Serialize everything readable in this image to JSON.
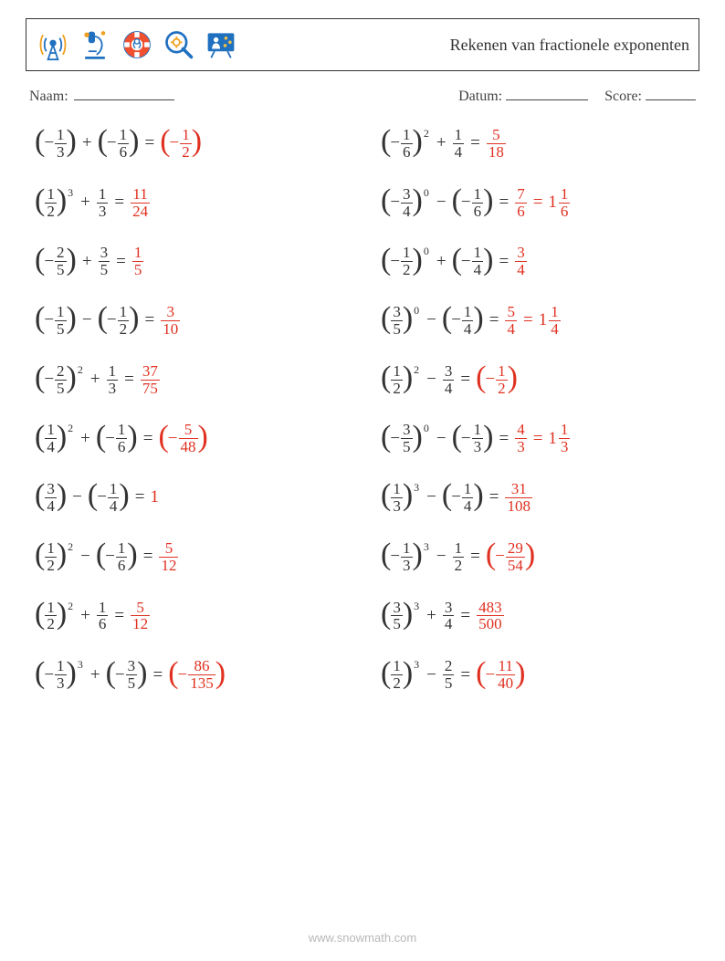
{
  "title": "Rekenen van fractionele exponenten",
  "labels": {
    "name": "Naam:",
    "date": "Datum:",
    "score": "Score:"
  },
  "footer": "www.snowmath.com",
  "answer_color": "#e03020",
  "icons": [
    "antenna",
    "microscope",
    "lifebuoy",
    "magnifier",
    "board"
  ],
  "leftColumn": [
    {
      "a": {
        "neg": true,
        "num": "1",
        "den": "3"
      },
      "op": "+",
      "b": {
        "neg": true,
        "num": "1",
        "den": "6"
      },
      "answers": [
        {
          "neg": true,
          "num": "1",
          "den": "2",
          "paren": true
        }
      ]
    },
    {
      "a": {
        "neg": false,
        "num": "1",
        "den": "2",
        "exp": "3"
      },
      "op": "+",
      "b": {
        "neg": false,
        "num": "1",
        "den": "3",
        "bare": true
      },
      "answers": [
        {
          "num": "11",
          "den": "24"
        }
      ]
    },
    {
      "a": {
        "neg": true,
        "num": "2",
        "den": "5"
      },
      "op": "+",
      "b": {
        "neg": false,
        "num": "3",
        "den": "5",
        "bare": true
      },
      "answers": [
        {
          "num": "1",
          "den": "5"
        }
      ]
    },
    {
      "a": {
        "neg": true,
        "num": "1",
        "den": "5"
      },
      "op": "−",
      "b": {
        "neg": true,
        "num": "1",
        "den": "2"
      },
      "answers": [
        {
          "num": "3",
          "den": "10"
        }
      ]
    },
    {
      "a": {
        "neg": true,
        "num": "2",
        "den": "5",
        "exp": "2"
      },
      "op": "+",
      "b": {
        "neg": false,
        "num": "1",
        "den": "3",
        "bare": true
      },
      "answers": [
        {
          "num": "37",
          "den": "75"
        }
      ]
    },
    {
      "a": {
        "neg": false,
        "num": "1",
        "den": "4",
        "exp": "2"
      },
      "op": "+",
      "b": {
        "neg": true,
        "num": "1",
        "den": "6"
      },
      "answers": [
        {
          "neg": true,
          "num": "5",
          "den": "48",
          "paren": true
        }
      ]
    },
    {
      "a": {
        "neg": false,
        "num": "3",
        "den": "4"
      },
      "op": "−",
      "b": {
        "neg": true,
        "num": "1",
        "den": "4"
      },
      "answers": [
        {
          "int": "1"
        }
      ]
    },
    {
      "a": {
        "neg": false,
        "num": "1",
        "den": "2",
        "exp": "2"
      },
      "op": "−",
      "b": {
        "neg": true,
        "num": "1",
        "den": "6"
      },
      "answers": [
        {
          "num": "5",
          "den": "12"
        }
      ]
    },
    {
      "a": {
        "neg": false,
        "num": "1",
        "den": "2",
        "exp": "2"
      },
      "op": "+",
      "b": {
        "neg": false,
        "num": "1",
        "den": "6",
        "bare": true
      },
      "answers": [
        {
          "num": "5",
          "den": "12"
        }
      ]
    },
    {
      "a": {
        "neg": true,
        "num": "1",
        "den": "3",
        "exp": "3"
      },
      "op": "+",
      "b": {
        "neg": true,
        "num": "3",
        "den": "5"
      },
      "answers": [
        {
          "neg": true,
          "num": "86",
          "den": "135",
          "paren": true
        }
      ]
    }
  ],
  "rightColumn": [
    {
      "a": {
        "neg": true,
        "num": "1",
        "den": "6",
        "exp": "2"
      },
      "op": "+",
      "b": {
        "neg": false,
        "num": "1",
        "den": "4",
        "bare": true
      },
      "answers": [
        {
          "num": "5",
          "den": "18"
        }
      ]
    },
    {
      "a": {
        "neg": true,
        "num": "3",
        "den": "4",
        "exp": "0"
      },
      "op": "−",
      "b": {
        "neg": true,
        "num": "1",
        "den": "6"
      },
      "answers": [
        {
          "num": "7",
          "den": "6"
        },
        {
          "whole": "1",
          "num": "1",
          "den": "6"
        }
      ]
    },
    {
      "a": {
        "neg": true,
        "num": "1",
        "den": "2",
        "exp": "0"
      },
      "op": "+",
      "b": {
        "neg": true,
        "num": "1",
        "den": "4"
      },
      "answers": [
        {
          "num": "3",
          "den": "4"
        }
      ]
    },
    {
      "a": {
        "neg": false,
        "num": "3",
        "den": "5",
        "exp": "0"
      },
      "op": "−",
      "b": {
        "neg": true,
        "num": "1",
        "den": "4"
      },
      "answers": [
        {
          "num": "5",
          "den": "4"
        },
        {
          "whole": "1",
          "num": "1",
          "den": "4"
        }
      ]
    },
    {
      "a": {
        "neg": false,
        "num": "1",
        "den": "2",
        "exp": "2"
      },
      "op": "−",
      "b": {
        "neg": false,
        "num": "3",
        "den": "4",
        "bare": true
      },
      "answers": [
        {
          "neg": true,
          "num": "1",
          "den": "2",
          "paren": true
        }
      ]
    },
    {
      "a": {
        "neg": true,
        "num": "3",
        "den": "5",
        "exp": "0"
      },
      "op": "−",
      "b": {
        "neg": true,
        "num": "1",
        "den": "3"
      },
      "answers": [
        {
          "num": "4",
          "den": "3"
        },
        {
          "whole": "1",
          "num": "1",
          "den": "3"
        }
      ]
    },
    {
      "a": {
        "neg": false,
        "num": "1",
        "den": "3",
        "exp": "3"
      },
      "op": "−",
      "b": {
        "neg": true,
        "num": "1",
        "den": "4"
      },
      "answers": [
        {
          "num": "31",
          "den": "108"
        }
      ]
    },
    {
      "a": {
        "neg": true,
        "num": "1",
        "den": "3",
        "exp": "3"
      },
      "op": "−",
      "b": {
        "neg": false,
        "num": "1",
        "den": "2",
        "bare": true
      },
      "answers": [
        {
          "neg": true,
          "num": "29",
          "den": "54",
          "paren": true
        }
      ]
    },
    {
      "a": {
        "neg": false,
        "num": "3",
        "den": "5",
        "exp": "3"
      },
      "op": "+",
      "b": {
        "neg": false,
        "num": "3",
        "den": "4",
        "bare": true
      },
      "answers": [
        {
          "num": "483",
          "den": "500"
        }
      ]
    },
    {
      "a": {
        "neg": false,
        "num": "1",
        "den": "2",
        "exp": "3"
      },
      "op": "−",
      "b": {
        "neg": false,
        "num": "2",
        "den": "5",
        "bare": true
      },
      "answers": [
        {
          "neg": true,
          "num": "11",
          "den": "40",
          "paren": true
        }
      ]
    }
  ]
}
